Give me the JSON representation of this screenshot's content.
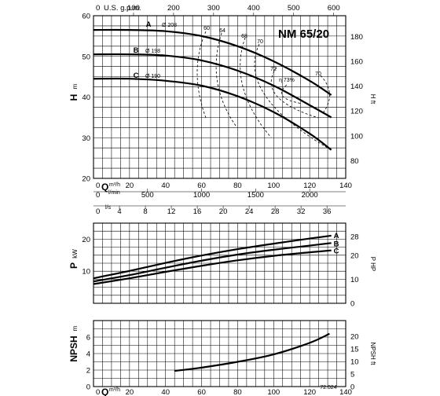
{
  "chart_data": [
    {
      "type": "line",
      "title": "NM 65/20",
      "xlabel": "Q m³/h",
      "ylabel": "H m",
      "y2label": "H ft",
      "xlim": [
        0,
        140
      ],
      "ylim": [
        20,
        60
      ],
      "xticks": [
        0,
        20,
        40,
        60,
        80,
        100,
        120,
        140
      ],
      "yticks": [
        20,
        30,
        40,
        50,
        60
      ],
      "y2ticks": [
        80,
        100,
        120,
        140,
        160,
        180
      ],
      "top_axis": {
        "label": "U.S. g.p.m.",
        "ticks": [
          0,
          100,
          200,
          300,
          400,
          500,
          600
        ]
      },
      "lower_axes": [
        {
          "label": "l/min",
          "ticks": [
            0,
            500,
            1000,
            1500,
            2000
          ]
        },
        {
          "label": "l/s",
          "ticks": [
            0,
            4,
            8,
            12,
            16,
            20,
            24,
            28,
            32,
            36
          ]
        }
      ],
      "series": [
        {
          "name": "A Ø 208",
          "x": [
            0,
            20,
            40,
            60,
            80,
            100,
            120,
            132
          ],
          "y": [
            56.5,
            56.5,
            56.2,
            55,
            52.5,
            48.8,
            44,
            40.5
          ]
        },
        {
          "name": "B Ø 198",
          "x": [
            0,
            20,
            40,
            60,
            80,
            100,
            120,
            132
          ],
          "y": [
            50.5,
            50.5,
            50.2,
            49,
            46.5,
            42.8,
            38,
            35
          ]
        },
        {
          "name": "C Ø 190",
          "x": [
            0,
            20,
            40,
            60,
            80,
            100,
            120,
            132
          ],
          "y": [
            44.5,
            44.5,
            44,
            42.8,
            40.2,
            36.3,
            31,
            27
          ]
        }
      ],
      "efficiency_labels": [
        "60",
        "64",
        "68",
        "70",
        "72",
        "η 73%",
        "70"
      ],
      "grid": true
    },
    {
      "type": "line",
      "xlabel": "",
      "ylabel": "P kW",
      "y2label": "P HP",
      "xlim": [
        0,
        140
      ],
      "ylim": [
        0,
        25
      ],
      "yticks": [
        10,
        20
      ],
      "y2ticks": [
        0,
        10,
        20,
        28
      ],
      "series": [
        {
          "name": "A",
          "x": [
            0,
            20,
            40,
            60,
            80,
            100,
            120,
            132
          ],
          "y": [
            7.8,
            10.1,
            12.6,
            14.9,
            16.9,
            18.6,
            20.2,
            21.1
          ]
        },
        {
          "name": "B",
          "x": [
            0,
            20,
            40,
            60,
            80,
            100,
            120,
            132
          ],
          "y": [
            6.8,
            8.8,
            11.1,
            13.3,
            15.2,
            16.7,
            18.0,
            18.8
          ]
        },
        {
          "name": "C",
          "x": [
            0,
            20,
            40,
            60,
            80,
            100,
            120,
            132
          ],
          "y": [
            6.0,
            7.8,
            9.8,
            11.7,
            13.4,
            14.8,
            15.9,
            16.5
          ]
        }
      ],
      "grid": true
    },
    {
      "type": "line",
      "xlabel": "Q m³/h",
      "ylabel": "NPSH m",
      "y2label": "NPSH ft",
      "xlim": [
        0,
        140
      ],
      "ylim": [
        0,
        8
      ],
      "xticks": [
        0,
        20,
        40,
        60,
        80,
        100,
        120,
        140
      ],
      "yticks": [
        0,
        2,
        4,
        6
      ],
      "y2ticks": [
        0,
        5,
        10,
        15,
        20
      ],
      "series": [
        {
          "name": "",
          "x": [
            45,
            60,
            80,
            100,
            120,
            131
          ],
          "y": [
            1.9,
            2.3,
            3.0,
            3.9,
            5.3,
            6.4
          ]
        }
      ],
      "grid": true
    }
  ],
  "labels": {
    "gpm": "U.S. g.p.m.",
    "q_unit": "m³/h",
    "lmin": "l/min",
    "ls": "l/s",
    "code": "72.024"
  }
}
